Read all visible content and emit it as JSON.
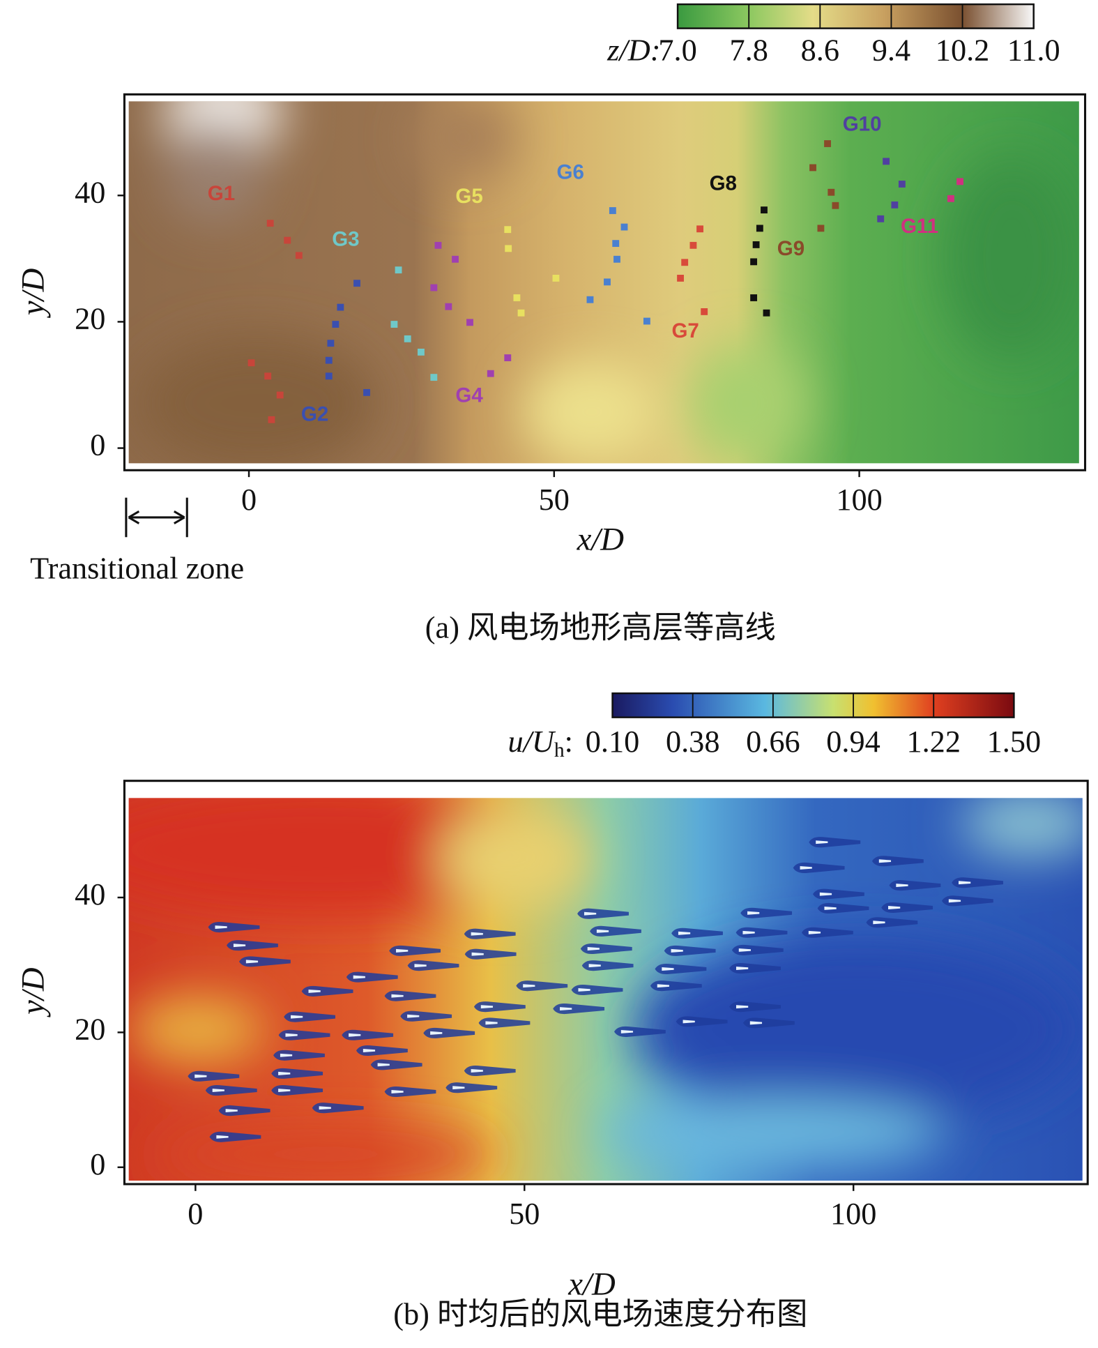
{
  "chart_data": [
    {
      "type": "heatmap",
      "caption": "(a) 风电场地形高层等高线",
      "xlabel": "x/D",
      "ylabel": "y/D",
      "xlim": [
        -20.4,
        137
      ],
      "ylim": [
        -3.5,
        56
      ],
      "xticks": [
        0,
        50,
        100
      ],
      "yticks": [
        0,
        20,
        40
      ],
      "colorbar": {
        "label": "z/D:",
        "clim": [
          7,
          11
        ],
        "ticks": [
          {
            "value": 7,
            "label": "7.0"
          },
          {
            "value": 7.8,
            "label": "7.8"
          },
          {
            "value": 8.6,
            "label": "8.6"
          },
          {
            "value": 9.4,
            "label": "9.4"
          },
          {
            "value": 10.2,
            "label": "10.2"
          },
          {
            "value": 11,
            "label": "11.0"
          }
        ]
      },
      "annotation": "Transitional zone",
      "series": [
        {
          "name": "G1",
          "color": "#c8453a",
          "x": [
            3.5,
            6.3,
            8.2,
            0.4,
            3.1,
            5.1,
            3.7
          ],
          "y": [
            35.6,
            32.9,
            30.5,
            13.5,
            11.4,
            8.4,
            4.5
          ]
        },
        {
          "name": "G2",
          "color": "#3a4fb0",
          "x": [
            17.7,
            15,
            14.2,
            13.4,
            13.1,
            13.1,
            19.3
          ],
          "y": [
            26.1,
            22.3,
            19.6,
            16.6,
            13.9,
            11.4,
            8.8
          ]
        },
        {
          "name": "G3",
          "color": "#6fc8c8",
          "x": [
            24.5,
            23.8,
            26,
            28.2,
            30.3
          ],
          "y": [
            28.2,
            19.6,
            17.3,
            15.2,
            11.2
          ]
        },
        {
          "name": "G4",
          "color": "#a040b0",
          "x": [
            31,
            33.8,
            30.3,
            32.7,
            36.2,
            42.4,
            39.6
          ],
          "y": [
            32.1,
            29.9,
            25.4,
            22.4,
            19.9,
            14.3,
            11.8
          ]
        },
        {
          "name": "G5",
          "color": "#e8e060",
          "x": [
            42.4,
            42.5,
            43.9,
            44.6,
            50.3
          ],
          "y": [
            34.6,
            31.6,
            23.8,
            21.4,
            26.9
          ]
        },
        {
          "name": "G6",
          "color": "#4a80d0",
          "x": [
            59.6,
            61.5,
            60.1,
            60.3,
            58.7,
            55.9,
            65.2
          ],
          "y": [
            37.6,
            35,
            32.4,
            29.9,
            26.3,
            23.5,
            20.1
          ]
        },
        {
          "name": "G7",
          "color": "#d84a3a",
          "x": [
            73.9,
            72.8,
            71.4,
            70.7,
            74.6
          ],
          "y": [
            34.7,
            32.1,
            29.4,
            26.9,
            21.6
          ]
        },
        {
          "name": "G8",
          "color": "#111111",
          "x": [
            84.4,
            83.7,
            83.1,
            82.7,
            82.7,
            84.8
          ],
          "y": [
            37.7,
            34.8,
            32.2,
            29.5,
            23.8,
            21.4
          ]
        },
        {
          "name": "G9",
          "color": "#8a4a2a",
          "x": [
            92.4,
            94.8,
            95.4,
            96.1,
            93.7
          ],
          "y": [
            44.4,
            48.2,
            40.5,
            38.4,
            34.8
          ]
        },
        {
          "name": "G10",
          "color": "#5040a0",
          "x": [
            104.4,
            107,
            105.8,
            103.5
          ],
          "y": [
            45.4,
            41.8,
            38.5,
            36.3
          ]
        },
        {
          "name": "G11",
          "color": "#d03080",
          "x": [
            116.5,
            115
          ],
          "y": [
            42.2,
            39.5
          ]
        }
      ]
    },
    {
      "type": "heatmap",
      "caption": "(b) 时均后的风电场速度分布图",
      "xlabel": "x/D",
      "ylabel": "y/D",
      "xlim": [
        -10.8,
        135.6
      ],
      "ylim": [
        -2.5,
        57.3
      ],
      "xticks": [
        0,
        50,
        100
      ],
      "yticks": [
        0,
        20,
        40
      ],
      "colorbar": {
        "label": "u/U",
        "label_sub": "h",
        "label_end": ":",
        "clim": [
          0.1,
          1.5
        ],
        "ticks": [
          {
            "value": 0.1,
            "label": "0.10"
          },
          {
            "value": 0.38,
            "label": "0.38"
          },
          {
            "value": 0.66,
            "label": "0.66"
          },
          {
            "value": 0.94,
            "label": "0.94"
          },
          {
            "value": 1.22,
            "label": "1.22"
          },
          {
            "value": 1.5,
            "label": "1.50"
          }
        ]
      }
    }
  ]
}
